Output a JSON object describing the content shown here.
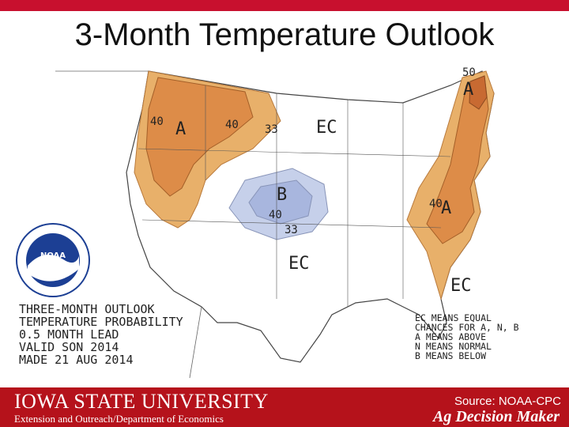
{
  "slide": {
    "title": "3-Month Temperature Outlook"
  },
  "map": {
    "legend_left": [
      "THREE-MONTH OUTLOOK",
      "TEMPERATURE PROBABILITY",
      "0.5 MONTH LEAD",
      "VALID SON 2014",
      "MADE 21 AUG 2014"
    ],
    "legend_right": [
      "EC MEANS EQUAL",
      "CHANCES FOR A, N, B",
      "A MEANS ABOVE",
      "N MEANS NORMAL",
      "B MEANS BELOW"
    ],
    "labels": {
      "west_40_left": "40",
      "west_A": "A",
      "west_40_right": "40",
      "west_33": "33",
      "ec_north": "EC",
      "central_B": "B",
      "central_40": "40",
      "central_33": "33",
      "ec_south": "EC",
      "ec_southeast": "EC",
      "east_40": "40",
      "east_A": "A",
      "northeast_50": "50",
      "northeast_A": "A"
    },
    "logo_text": "NOAA",
    "colors": {
      "above_33": "#e8b06a",
      "above_40": "#dd8c48",
      "above_50": "#c86a32",
      "below_33": "#c6d0ea",
      "below_40": "#a8b6de"
    }
  },
  "footer": {
    "university": "IOWA STATE UNIVERSITY",
    "department": "Extension and Outreach/Department of Economics",
    "source": "Source: NOAA-CPC",
    "brand": "Ag Decision Maker"
  }
}
